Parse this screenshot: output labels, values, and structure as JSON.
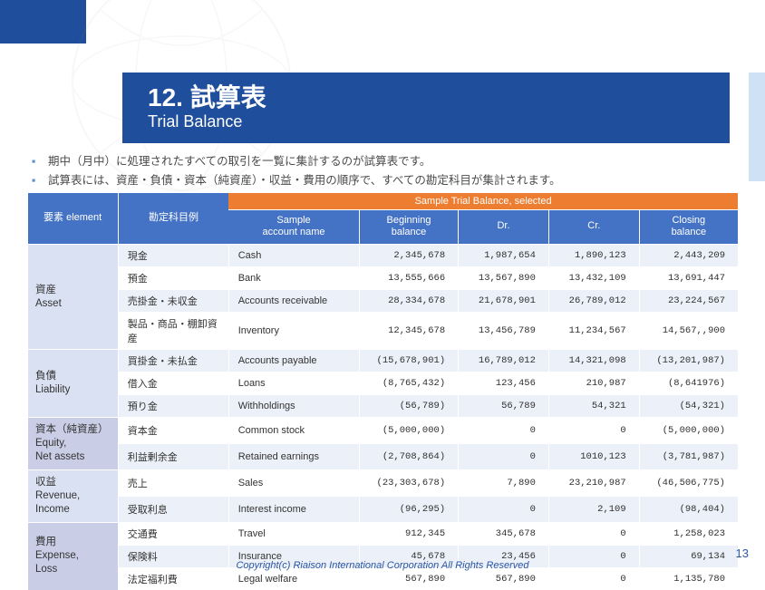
{
  "title": {
    "number": "12.",
    "main_jp": "試算表",
    "sub_en": "Trial Balance"
  },
  "bullets": [
    "期中（月中）に処理されたすべての取引を一覧に集計するのが試算表です。",
    "試算表には、資産・負債・資本（純資産）・収益・費用の順序で、すべての勘定科目が集計されます。"
  ],
  "table": {
    "sample_header": "Sample Trial Balance, selected",
    "headers": {
      "element": "要素 element",
      "account_jp": "勘定科目例",
      "account_en": "Sample\naccount name",
      "beginning": "Beginning\nbalance",
      "dr": "Dr.",
      "cr": "Cr.",
      "closing": "Closing\nbalance"
    },
    "groups": [
      {
        "key": "asset",
        "label_jp": "資産",
        "label_en": "Asset",
        "rows": [
          {
            "jp": "現金",
            "en": "Cash",
            "beg": "2,345,678",
            "dr": "1,987,654",
            "cr": "1,890,123",
            "close": "2,443,209",
            "shade": "light"
          },
          {
            "jp": "預金",
            "en": "Bank",
            "beg": "13,555,666",
            "dr": "13,567,890",
            "cr": "13,432,109",
            "close": "13,691,447",
            "shade": "plain"
          },
          {
            "jp": "売掛金・未収金",
            "en": "Accounts receivable",
            "beg": "28,334,678",
            "dr": "21,678,901",
            "cr": "26,789,012",
            "close": "23,224,567",
            "shade": "light"
          },
          {
            "jp": "製品・商品・棚卸資産",
            "en": "Inventory",
            "beg": "12,345,678",
            "dr": "13,456,789",
            "cr": "11,234,567",
            "close": "14,567,,900",
            "shade": "plain"
          }
        ]
      },
      {
        "key": "liab",
        "label_jp": "負債",
        "label_en": "Liability",
        "rows": [
          {
            "jp": "買掛金・未払金",
            "en": "Accounts payable",
            "beg": "(15,678,901)",
            "dr": "16,789,012",
            "cr": "14,321,098",
            "close": "(13,201,987)",
            "shade": "light"
          },
          {
            "jp": "借入金",
            "en": "Loans",
            "beg": "(8,765,432)",
            "dr": "123,456",
            "cr": "210,987",
            "close": "(8,641976)",
            "shade": "plain"
          },
          {
            "jp": "預り金",
            "en": "Withholdings",
            "beg": "(56,789)",
            "dr": "56,789",
            "cr": "54,321",
            "close": "(54,321)",
            "shade": "light"
          }
        ]
      },
      {
        "key": "equity",
        "label_jp": "資本（純資産）",
        "label_en": "Equity,\nNet assets",
        "rows": [
          {
            "jp": "資本金",
            "en": "Common stock",
            "beg": "(5,000,000)",
            "dr": "0",
            "cr": "0",
            "close": "(5,000,000)",
            "shade": "plain"
          },
          {
            "jp": "利益剰余金",
            "en": "Retained earnings",
            "beg": "(2,708,864)",
            "dr": "0",
            "cr": "1010,123",
            "close": "(3,781,987)",
            "shade": "light"
          }
        ]
      },
      {
        "key": "rev",
        "label_jp": "収益",
        "label_en": "Revenue,\nIncome",
        "rows": [
          {
            "jp": "売上",
            "en": "Sales",
            "beg": "(23,303,678)",
            "dr": "7,890",
            "cr": "23,210,987",
            "close": "(46,506,775)",
            "shade": "plain"
          },
          {
            "jp": "受取利息",
            "en": "Interest income",
            "beg": "(96,295)",
            "dr": "0",
            "cr": "2,109",
            "close": "(98,404)",
            "shade": "light"
          }
        ]
      },
      {
        "key": "exp",
        "label_jp": "費用",
        "label_en": "Expense,\nLoss",
        "rows": [
          {
            "jp": "交通費",
            "en": "Travel",
            "beg": "912,345",
            "dr": "345,678",
            "cr": "0",
            "close": "1,258,023",
            "shade": "plain"
          },
          {
            "jp": "保険料",
            "en": "Insurance",
            "beg": "45,678",
            "dr": "23,456",
            "cr": "0",
            "close": "69,134",
            "shade": "light"
          },
          {
            "jp": "法定福利費",
            "en": "Legal welfare",
            "beg": "567,890",
            "dr": "567,890",
            "cr": "0",
            "close": "1,135,780",
            "shade": "plain"
          }
        ]
      }
    ]
  },
  "footer": "Copyright(c) Riaison International Corporation All Rights Reserved",
  "page_number": "13",
  "colors": {
    "brand_blue": "#1f4e9c",
    "header_blue": "#4472c4",
    "orange": "#ed7d31",
    "row_light": "#ecf0f8",
    "group_purple": "#c9cee6",
    "group_blue": "#d9e1f2"
  }
}
